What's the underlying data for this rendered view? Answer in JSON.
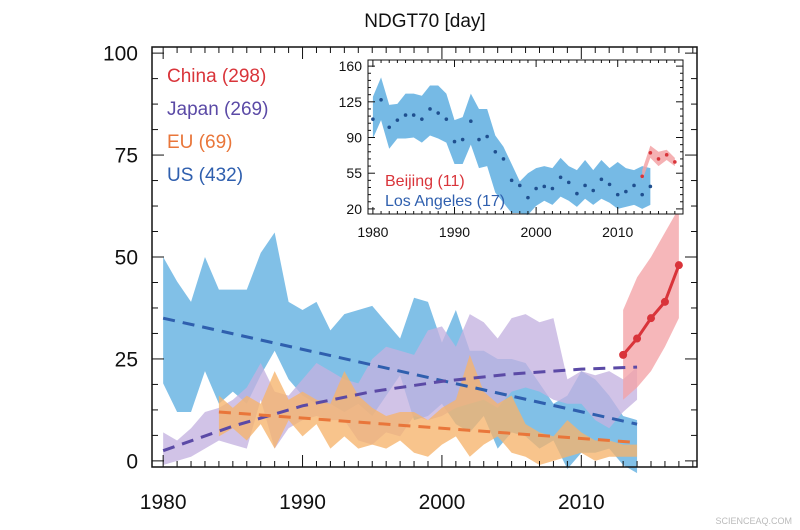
{
  "chart_data": [
    {
      "type": "area",
      "title": "NDGT70 [day]",
      "xlabel": "",
      "ylabel": "",
      "xlim": [
        1979.2,
        2018.3
      ],
      "ylim": [
        -1.5,
        101.5
      ],
      "xticks": [
        1980,
        1990,
        2000,
        2010
      ],
      "yticks": [
        0,
        25,
        50,
        75,
        100
      ],
      "grid": false,
      "legend_placement": "top-left",
      "series": [
        {
          "name": "US (432)",
          "color": "#2f5fae",
          "band_color": "#5eaee0",
          "x_start": 1980,
          "upper": [
            50,
            44,
            39,
            50,
            42,
            42,
            42,
            51,
            56,
            39,
            37,
            39,
            32,
            36,
            37,
            38,
            34,
            30,
            40,
            39,
            29,
            37,
            27,
            27,
            25,
            25,
            24,
            19,
            14,
            16,
            22,
            20,
            16,
            11,
            10
          ],
          "lower": [
            19,
            12,
            12,
            22,
            14,
            17,
            14,
            21,
            27,
            20,
            16,
            14,
            14,
            12,
            14,
            11,
            16,
            21,
            10,
            11,
            14,
            9,
            7,
            11,
            3,
            7,
            6,
            3,
            5,
            -2,
            2,
            2,
            3,
            -1,
            -3
          ],
          "trend": [
            [
              1980,
              35
            ],
            [
              2014,
              9
            ]
          ]
        },
        {
          "name": "Japan (269)",
          "color": "#5b4aa6",
          "band_color": "#c4b2e0",
          "x_start": 1980,
          "upper": [
            7,
            5,
            8,
            12,
            13,
            15,
            18,
            24,
            17,
            16,
            20,
            24,
            22,
            20,
            19,
            25,
            28,
            27,
            26,
            32,
            33,
            28,
            36,
            34,
            30,
            35,
            36,
            34,
            35,
            20,
            22,
            21,
            22,
            20,
            23
          ],
          "lower": [
            -1,
            0,
            1,
            3,
            5,
            4,
            3,
            15,
            3,
            8,
            10,
            11,
            10,
            10,
            5,
            4,
            7,
            6,
            11,
            10,
            11,
            13,
            14,
            15,
            13,
            17,
            18,
            17,
            15,
            14,
            14,
            10,
            8,
            12,
            15
          ],
          "trend": [
            [
              1980,
              2.5
            ],
            [
              1985,
              8.5
            ],
            [
              1990,
              13.5
            ],
            [
              1995,
              17
            ],
            [
              2000,
              19.5
            ],
            [
              2005,
              21.3
            ],
            [
              2010,
              22.5
            ],
            [
              2014,
              23
            ]
          ]
        },
        {
          "name": "EU (69)",
          "color": "#e9763a",
          "band_color": "#f6b36c",
          "x_start": 1984,
          "upper": [
            16,
            13,
            16,
            14,
            22,
            15,
            17,
            15,
            14,
            22,
            16,
            13,
            11,
            12,
            12,
            10,
            13,
            15,
            26,
            17,
            14,
            16,
            9,
            7,
            6,
            10,
            7,
            5,
            5,
            4,
            4
          ],
          "lower": [
            6,
            8,
            5,
            9,
            3,
            10,
            6,
            9,
            3,
            6,
            3,
            4,
            3,
            5,
            2,
            1,
            4,
            6,
            1,
            4,
            6,
            2,
            1,
            -1,
            0,
            1,
            2,
            0,
            1,
            1,
            1
          ],
          "trend": [
            [
              1984,
              12
            ],
            [
              2014,
              4.5
            ]
          ]
        },
        {
          "name": "China (298)",
          "color": "#d9343a",
          "band_color": "#f3a3a6",
          "x_start": 2013,
          "values": [
            26,
            30,
            35,
            39,
            48
          ],
          "upper": [
            37,
            45,
            50,
            56,
            62
          ],
          "lower": [
            15,
            18,
            22,
            28,
            35
          ]
        }
      ]
    },
    {
      "type": "scatter",
      "title": "",
      "xlim": [
        1979.4,
        2018
      ],
      "ylim": [
        15,
        166
      ],
      "xticks": [
        1980,
        1990,
        2000,
        2010
      ],
      "yticks": [
        20,
        55,
        90,
        125,
        160
      ],
      "grid": false,
      "legend_placement": "bottom-left",
      "series": [
        {
          "name": "Los Angeles (17)",
          "color": "#1f4f8f",
          "band_color": "#5eaee0",
          "x_start": 1980,
          "values": [
            108,
            127,
            100,
            107,
            112,
            112,
            108,
            118,
            114,
            108,
            86,
            88,
            106,
            88,
            91,
            76,
            69,
            48,
            43,
            31,
            40,
            42,
            40,
            51,
            46,
            35,
            43,
            38,
            49,
            44,
            34,
            37,
            43,
            34,
            42
          ],
          "upper": [
            130,
            149,
            122,
            123,
            133,
            133,
            131,
            141,
            141,
            133,
            107,
            110,
            133,
            118,
            118,
            92,
            81,
            64,
            47,
            55,
            60,
            62,
            60,
            70,
            62,
            58,
            68,
            58,
            68,
            60,
            66,
            60,
            58,
            62,
            60
          ],
          "lower": [
            89,
            107,
            79,
            89,
            89,
            90,
            85,
            92,
            89,
            85,
            64,
            64,
            83,
            60,
            62,
            36,
            26,
            16,
            16,
            14,
            23,
            28,
            24,
            32,
            28,
            22,
            30,
            24,
            30,
            26,
            20,
            22,
            24,
            20,
            24
          ]
        },
        {
          "name": "Beijing (11)",
          "color": "#d9343a",
          "band_color": "#f3a3a6",
          "x_start": 2013,
          "values": [
            52,
            75,
            69,
            73,
            66
          ],
          "upper": [
            58,
            82,
            76,
            78,
            70
          ],
          "lower": [
            48,
            70,
            62,
            68,
            62
          ]
        }
      ]
    }
  ],
  "watermark": "SCIENCEAQ.COM"
}
